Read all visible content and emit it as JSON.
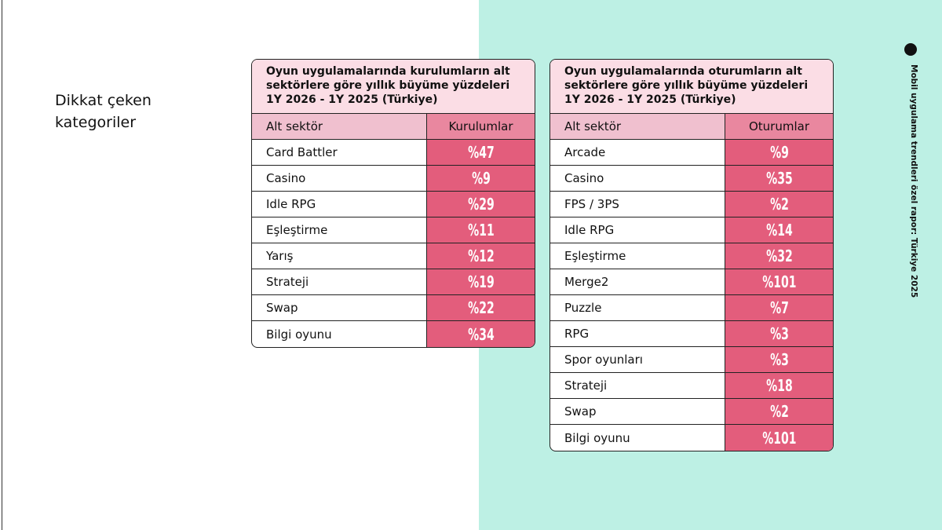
{
  "heading": "Dikkat çeken kategoriler",
  "side_text": "Mobil uygulama trendleri özel rapor: Türkiye 2025",
  "tables": [
    {
      "title": "Oyun uygulamalarında kurulumların alt sektörlere göre yıllık büyüme yüzdeleri 1Y 2026 - 1Y 2025 (Türkiye)",
      "headers": [
        "Alt sektör",
        "Kurulumlar"
      ],
      "rows": [
        [
          "Card Battler",
          "%47"
        ],
        [
          "Casino",
          "%9"
        ],
        [
          "Idle RPG",
          "%29"
        ],
        [
          "Eşleştirme",
          "%11"
        ],
        [
          "Yarış",
          "%12"
        ],
        [
          "Strateji",
          "%19"
        ],
        [
          "Swap",
          "%22"
        ],
        [
          "Bilgi oyunu",
          "%34"
        ]
      ]
    },
    {
      "title": "Oyun uygulamalarında oturumların alt sektörlere göre yıllık büyüme yüzdeleri 1Y 2026 - 1Y 2025 (Türkiye)",
      "headers": [
        "Alt sektör",
        "Oturumlar"
      ],
      "rows": [
        [
          "Arcade",
          "%9"
        ],
        [
          "Casino",
          "%35"
        ],
        [
          "FPS / 3PS",
          "%2"
        ],
        [
          "Idle RPG",
          "%14"
        ],
        [
          "Eşleştirme",
          "%32"
        ],
        [
          "Merge2",
          "%101"
        ],
        [
          "Puzzle",
          "%7"
        ],
        [
          "RPG",
          "%3"
        ],
        [
          "Spor oyunları",
          "%3"
        ],
        [
          "Strateji",
          "%18"
        ],
        [
          "Swap",
          "%2"
        ],
        [
          "Bilgi oyunu",
          "%101"
        ]
      ]
    }
  ]
}
